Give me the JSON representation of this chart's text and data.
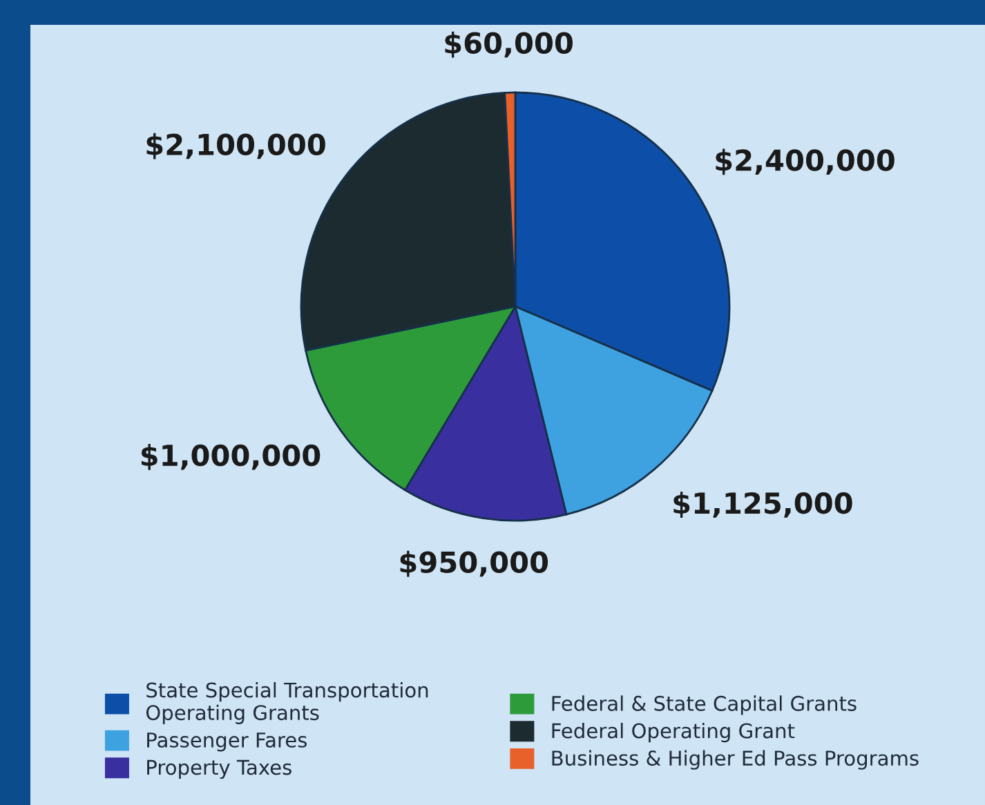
{
  "chart_data": {
    "type": "pie",
    "categories": [
      "State Special Transportation\nOperating Grants",
      "Passenger Fares",
      "Property Taxes",
      "Federal & State Capital Grants",
      "Federal Operating Grant",
      "Business & Higher Ed Pass Programs"
    ],
    "values": [
      2400000,
      1125000,
      950000,
      1000000,
      2100000,
      60000
    ],
    "colors": [
      "#0d4fa8",
      "#3fa2e0",
      "#3a2f9e",
      "#2e9b3a",
      "#1c2b30",
      "#e8602a"
    ],
    "value_labels": [
      "$2,400,000",
      "$1,125,000",
      "$950,000",
      "$1,000,000",
      "$2,100,000",
      "$60,000"
    ],
    "legend": "bottom"
  }
}
